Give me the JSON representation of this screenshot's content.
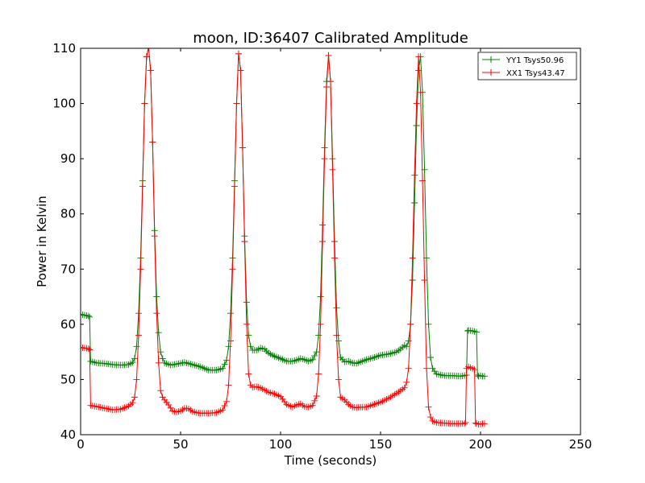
{
  "chart_data": {
    "type": "line",
    "title": "moon, ID:36407 Calibrated Amplitude",
    "xlabel": "Time (seconds)",
    "ylabel": "Power in Kelvin",
    "xlim": [
      0,
      250
    ],
    "ylim": [
      40,
      110
    ],
    "xticks": [
      "0",
      "50",
      "100",
      "150",
      "200",
      "250"
    ],
    "yticks": [
      "40",
      "50",
      "60",
      "70",
      "80",
      "90",
      "100",
      "110"
    ],
    "grid": false,
    "legend_position": "top-right",
    "series": [
      {
        "name": "YY1 Tsys50.96",
        "color": "#008000",
        "x": [
          0,
          4,
          4.5,
          5,
          8,
          12,
          16,
          20,
          24,
          26,
          27,
          28,
          29,
          30,
          31,
          32,
          33,
          34,
          35,
          36,
          37,
          38,
          39,
          40,
          41,
          42,
          45,
          48,
          52,
          56,
          60,
          64,
          68,
          71,
          73,
          74,
          75,
          76,
          77,
          78,
          79,
          80,
          81,
          82,
          83,
          84,
          85,
          86,
          88,
          90,
          92,
          94,
          97,
          100,
          103,
          106,
          108,
          110,
          112,
          114,
          116,
          118,
          119,
          120,
          121,
          122,
          123,
          124,
          125,
          126,
          127,
          128,
          129,
          130,
          132,
          134,
          136,
          138,
          140,
          143,
          146,
          150,
          154,
          158,
          160,
          162,
          163,
          164,
          165,
          166,
          167,
          168,
          169,
          170,
          171,
          172,
          173,
          174,
          175,
          176,
          178,
          182,
          186,
          190,
          192,
          193,
          193.5,
          194,
          196,
          198,
          198.5,
          199,
          200,
          201,
          202
        ],
        "y": [
          61.8,
          61.5,
          61.3,
          53.3,
          53.0,
          52.9,
          52.7,
          52.6,
          52.7,
          53.1,
          53.8,
          56.0,
          62.0,
          72.0,
          86.0,
          100.0,
          108.5,
          110.2,
          106.0,
          93.0,
          77.0,
          65.0,
          58.5,
          55.0,
          53.8,
          53.0,
          52.6,
          52.8,
          53.1,
          52.7,
          52.3,
          51.7,
          51.7,
          52.0,
          53.5,
          56.0,
          62.0,
          72.0,
          86.0,
          100.0,
          109.0,
          106.0,
          92.0,
          76.0,
          64.0,
          58.0,
          56.0,
          55.3,
          55.3,
          55.7,
          55.5,
          54.8,
          54.2,
          53.8,
          53.3,
          53.3,
          53.5,
          53.8,
          53.6,
          53.3,
          53.6,
          55.0,
          58.0,
          65.0,
          78.0,
          92.0,
          104.0,
          108.7,
          104.0,
          90.0,
          75.0,
          63.0,
          57.0,
          54.0,
          53.2,
          53.3,
          53.0,
          52.9,
          53.2,
          53.6,
          53.9,
          54.4,
          54.6,
          55.0,
          55.5,
          56.2,
          56.0,
          57.0,
          60.0,
          68.0,
          82.0,
          96.0,
          106.0,
          108.5,
          102.0,
          88.0,
          72.0,
          60.0,
          54.0,
          52.0,
          51.0,
          50.7,
          50.7,
          50.6,
          50.7,
          50.8,
          58.8,
          58.9,
          58.8,
          58.6,
          50.8,
          50.6,
          50.7,
          50.6,
          50.6
        ]
      },
      {
        "name": "XX1 Tsys43.47",
        "color": "#ff0000",
        "x": [
          0,
          4,
          4.5,
          5,
          8,
          12,
          16,
          20,
          24,
          26,
          27,
          28,
          29,
          30,
          31,
          32,
          33,
          34,
          35,
          36,
          37,
          38,
          39,
          40,
          41,
          42,
          44,
          46,
          48,
          50,
          52,
          54,
          56,
          58,
          60,
          64,
          68,
          71,
          73,
          74,
          75,
          76,
          77,
          78,
          79,
          80,
          81,
          82,
          83,
          84,
          85,
          86,
          88,
          90,
          92,
          94,
          97,
          100,
          103,
          106,
          108,
          110,
          112,
          114,
          116,
          118,
          119,
          120,
          121,
          122,
          123,
          124,
          125,
          126,
          127,
          128,
          129,
          130,
          132,
          134,
          136,
          138,
          140,
          143,
          146,
          150,
          154,
          158,
          160,
          162,
          163,
          164,
          165,
          166,
          167,
          168,
          169,
          170,
          171,
          172,
          173,
          174,
          175,
          176,
          178,
          182,
          186,
          190,
          192,
          192.5,
          193,
          194,
          196,
          197,
          197.5,
          198,
          199,
          200,
          201,
          202
        ],
        "y": [
          55.8,
          55.6,
          55.4,
          45.3,
          45.1,
          44.8,
          44.5,
          44.6,
          45.2,
          45.8,
          46.8,
          50.0,
          58.0,
          70.0,
          85.0,
          100.0,
          108.5,
          110.2,
          106.0,
          93.0,
          76.0,
          62.0,
          53.0,
          48.0,
          46.8,
          46.3,
          45.4,
          44.3,
          44.1,
          44.3,
          44.8,
          44.7,
          44.2,
          44.0,
          43.9,
          43.9,
          44.0,
          44.5,
          46.0,
          49.0,
          57.0,
          70.0,
          85.0,
          100.0,
          109.0,
          106.0,
          92.0,
          75.0,
          60.0,
          51.0,
          49.0,
          48.6,
          48.7,
          48.5,
          48.1,
          47.7,
          47.4,
          46.9,
          45.5,
          45.0,
          45.4,
          45.6,
          45.1,
          45.0,
          45.3,
          47.0,
          51.0,
          60.0,
          75.0,
          90.0,
          103.0,
          108.7,
          104.0,
          88.0,
          72.0,
          58.0,
          50.0,
          46.8,
          46.3,
          45.5,
          45.0,
          44.9,
          45.0,
          45.0,
          45.4,
          45.9,
          46.6,
          47.5,
          48.0,
          48.5,
          49.5,
          52.0,
          60.0,
          72.0,
          87.0,
          100.0,
          108.5,
          102.0,
          86.0,
          68.0,
          52.0,
          45.0,
          43.2,
          42.5,
          42.2,
          42.1,
          42.0,
          42.0,
          42.0,
          42.2,
          52.0,
          52.3,
          52.0,
          51.8,
          42.1,
          42.0,
          41.9,
          41.9,
          42.0,
          42.0
        ]
      }
    ]
  }
}
